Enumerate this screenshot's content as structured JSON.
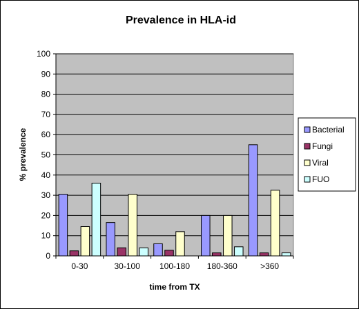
{
  "chart_data": {
    "type": "bar",
    "title": "Prevalence in HLA-id",
    "xlabel": "time from TX",
    "ylabel": "% prevalence",
    "ylim": [
      0,
      100
    ],
    "yticks": [
      0,
      10,
      20,
      30,
      40,
      50,
      60,
      70,
      80,
      90,
      100
    ],
    "grid": true,
    "legend_position": "right",
    "plot_background": "#c0c0c0",
    "categories": [
      "0-30",
      "30-100",
      "100-180",
      "180-360",
      ">360"
    ],
    "series": [
      {
        "name": "Bacterial",
        "color": "#9999ff",
        "values": [
          30.5,
          16.5,
          6,
          20,
          55
        ]
      },
      {
        "name": "Fungi",
        "color": "#993366",
        "values": [
          2.5,
          4,
          2.8,
          1.5,
          1.5
        ]
      },
      {
        "name": "Viral",
        "color": "#ffffcc",
        "values": [
          14.5,
          30.5,
          12,
          20,
          32.5
        ]
      },
      {
        "name": "FUO",
        "color": "#ccffff",
        "values": [
          36,
          4,
          0,
          4.5,
          1.5
        ]
      }
    ]
  }
}
